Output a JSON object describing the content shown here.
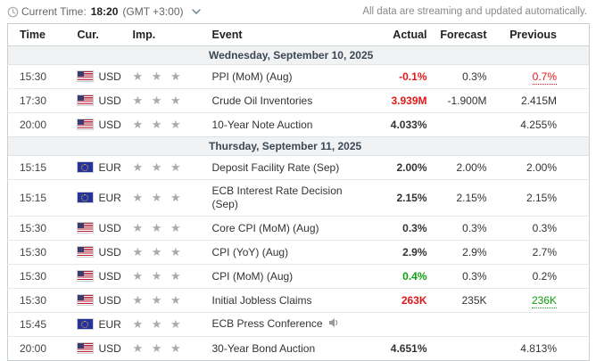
{
  "topbar": {
    "clock_icon": "clock-icon",
    "current_time_label": "Current Time:",
    "current_time": "18:20",
    "timezone": "(GMT +3:00)",
    "timezone_chevron_icon": "chevron-down-icon",
    "streaming_note": "All data are streaming and updated automatically."
  },
  "colors": {
    "red": "#e21717",
    "green": "#0f9e0f",
    "text": "#333333",
    "date_text": "#3b4754",
    "date_bg": "#f1f2f3",
    "star": "#a6abae",
    "border": "#c9ced1",
    "row_border": "#e6e8ea"
  },
  "table": {
    "headers": [
      "Time",
      "Cur.",
      "Imp.",
      "Event",
      "Actual",
      "Forecast",
      "Previous"
    ],
    "rows": [
      {
        "type": "date",
        "label": "Wednesday, September 10, 2025"
      },
      {
        "type": "event",
        "time": "15:30",
        "currency": "USD",
        "flag": "us",
        "stars": 3,
        "event": "PPI (MoM) (Aug)",
        "actual": "-0.1%",
        "actual_color": "red",
        "forecast": "0.3%",
        "previous": "0.7%",
        "previous_color": "red",
        "previous_revised": true
      },
      {
        "type": "event",
        "time": "17:30",
        "currency": "USD",
        "flag": "us",
        "stars": 3,
        "event": "Crude Oil Inventories",
        "actual": "3.939M",
        "actual_color": "red",
        "forecast": "-1.900M",
        "previous": "2.415M"
      },
      {
        "type": "event",
        "time": "20:00",
        "currency": "USD",
        "flag": "us",
        "stars": 3,
        "event": "10-Year Note Auction",
        "actual": "4.033%",
        "forecast": "",
        "previous": "4.255%"
      },
      {
        "type": "date",
        "label": "Thursday, September 11, 2025"
      },
      {
        "type": "event",
        "time": "15:15",
        "currency": "EUR",
        "flag": "eu",
        "stars": 3,
        "event": "Deposit Facility Rate (Sep)",
        "actual": "2.00%",
        "forecast": "2.00%",
        "previous": "2.00%"
      },
      {
        "type": "event",
        "time": "15:15",
        "currency": "EUR",
        "flag": "eu",
        "stars": 3,
        "event": "ECB Interest Rate Decision (Sep)",
        "actual": "2.15%",
        "forecast": "2.15%",
        "previous": "2.15%"
      },
      {
        "type": "event",
        "time": "15:30",
        "currency": "USD",
        "flag": "us",
        "stars": 3,
        "event": "Core CPI (MoM) (Aug)",
        "actual": "0.3%",
        "forecast": "0.3%",
        "previous": "0.3%"
      },
      {
        "type": "event",
        "time": "15:30",
        "currency": "USD",
        "flag": "us",
        "stars": 3,
        "event": "CPI (YoY) (Aug)",
        "actual": "2.9%",
        "forecast": "2.9%",
        "previous": "2.7%"
      },
      {
        "type": "event",
        "time": "15:30",
        "currency": "USD",
        "flag": "us",
        "stars": 3,
        "event": "CPI (MoM) (Aug)",
        "actual": "0.4%",
        "actual_color": "green",
        "forecast": "0.3%",
        "previous": "0.2%"
      },
      {
        "type": "event",
        "time": "15:30",
        "currency": "USD",
        "flag": "us",
        "stars": 3,
        "event": "Initial Jobless Claims",
        "actual": "263K",
        "actual_color": "red",
        "forecast": "235K",
        "previous": "236K",
        "previous_color": "green",
        "previous_revised": true
      },
      {
        "type": "event",
        "time": "15:45",
        "currency": "EUR",
        "flag": "eu",
        "stars": 3,
        "event": "ECB Press Conference",
        "audio_icon": "speaker-icon",
        "actual": "",
        "forecast": "",
        "previous": ""
      },
      {
        "type": "event",
        "time": "20:00",
        "currency": "USD",
        "flag": "us",
        "stars": 3,
        "event": "30-Year Bond Auction",
        "actual": "4.651%",
        "forecast": "",
        "previous": "4.813%"
      }
    ]
  }
}
